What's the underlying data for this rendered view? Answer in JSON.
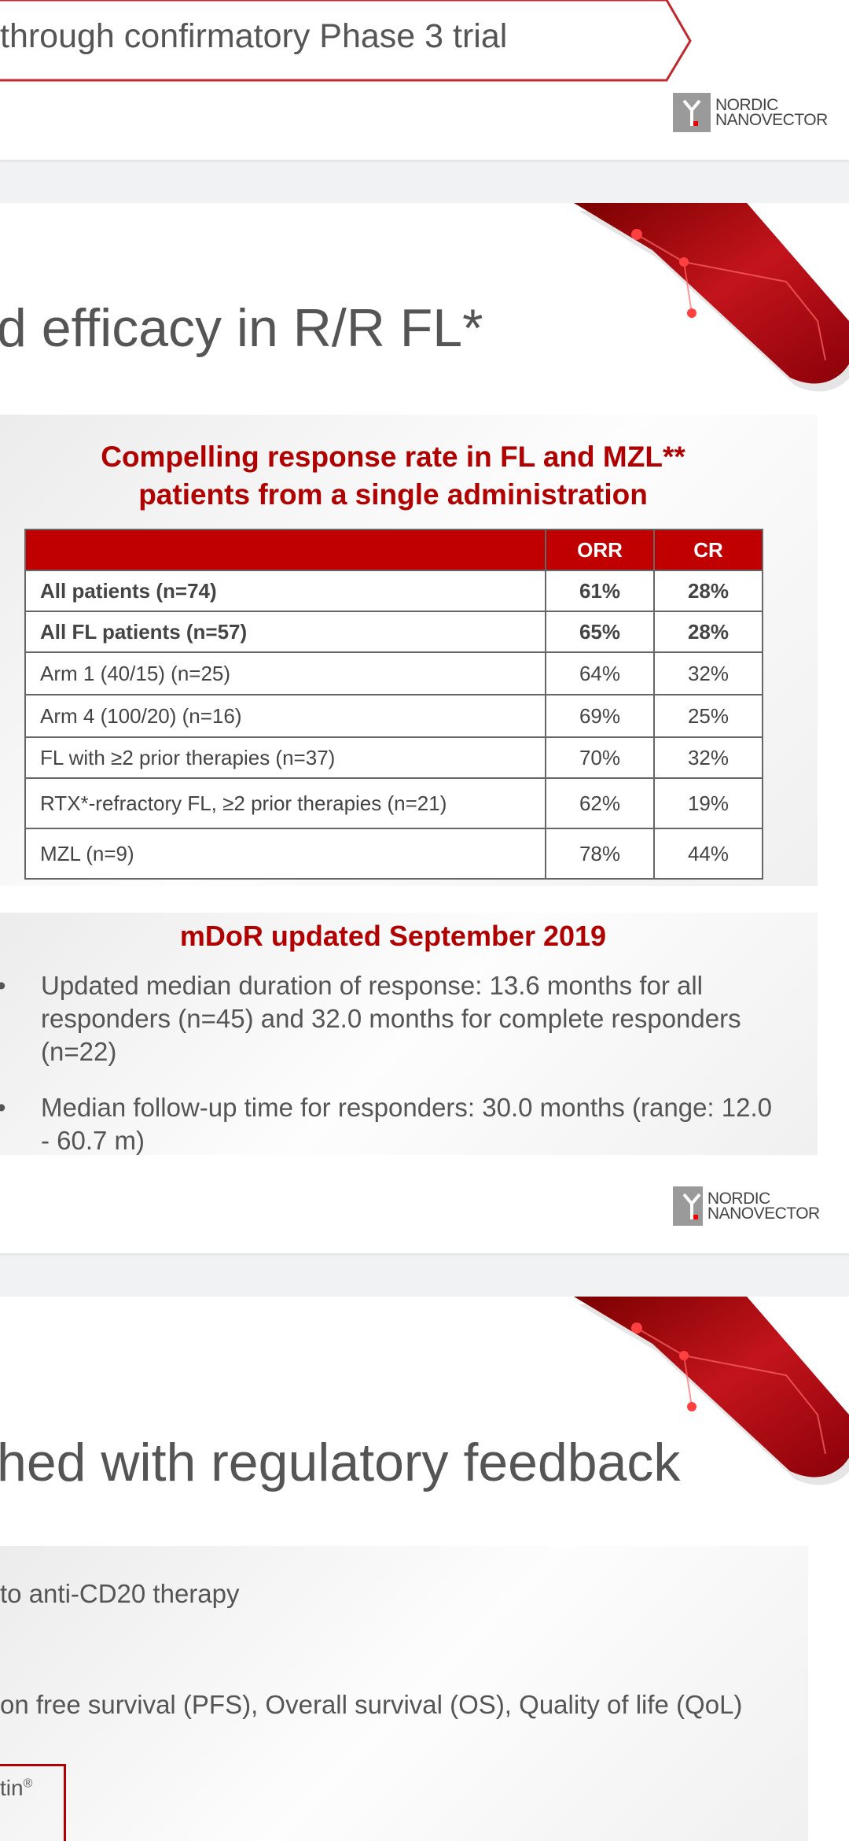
{
  "slide1": {
    "arrow_text": "through confirmatory Phase 3 trial",
    "logo": "NORDIC NANOVECTOR"
  },
  "slide2": {
    "title": "d efficacy in R/R FL*",
    "response_box": {
      "heading_line1": "Compelling response rate in FL and MZL**",
      "heading_line2": "patients from a single administration",
      "columns": [
        "",
        "ORR",
        "CR"
      ],
      "rows": [
        {
          "label": "All patients (n=74)",
          "orr": "61%",
          "cr": "28%",
          "bold": true
        },
        {
          "label": "All FL patients (n=57)",
          "orr": "65%",
          "cr": "28%",
          "bold": true
        },
        {
          "label": "Arm 1  (40/15) (n=25)",
          "orr": "64%",
          "cr": "32%",
          "bold": false
        },
        {
          "label": "Arm 4  (100/20) (n=16)",
          "orr": "69%",
          "cr": "25%",
          "bold": false
        },
        {
          "label": "FL with ≥2 prior therapies (n=37)",
          "orr": "70%",
          "cr": "32%",
          "bold": false
        },
        {
          "label": "RTX*-refractory FL, ≥2 prior therapies  (n=21)",
          "orr": "62%",
          "cr": "19%",
          "bold": false
        },
        {
          "label": "MZL (n=9)",
          "orr": "78%",
          "cr": "44%",
          "bold": false
        }
      ]
    },
    "mdor_box": {
      "heading": "mDoR updated September 2019",
      "bullets": [
        "Updated median duration of response: 13.6 months for all responders (n=45) and 32.0 months for complete responders (n=22)",
        "Median follow-up time for responders: 30.0 months (range: 12.0 - 60.7 m)"
      ]
    },
    "logo": "NORDIC NANOVECTOR"
  },
  "slide3": {
    "title": "hed with regulatory feedback",
    "line1": "to anti-CD20 therapy",
    "line2": "on free survival (PFS), Overall survival (OS), Quality of life (QoL)",
    "boxed_text": "tin",
    "boxed_sup": "®"
  },
  "colors": {
    "accent_red": "#b00000",
    "header_red": "#c00000"
  }
}
